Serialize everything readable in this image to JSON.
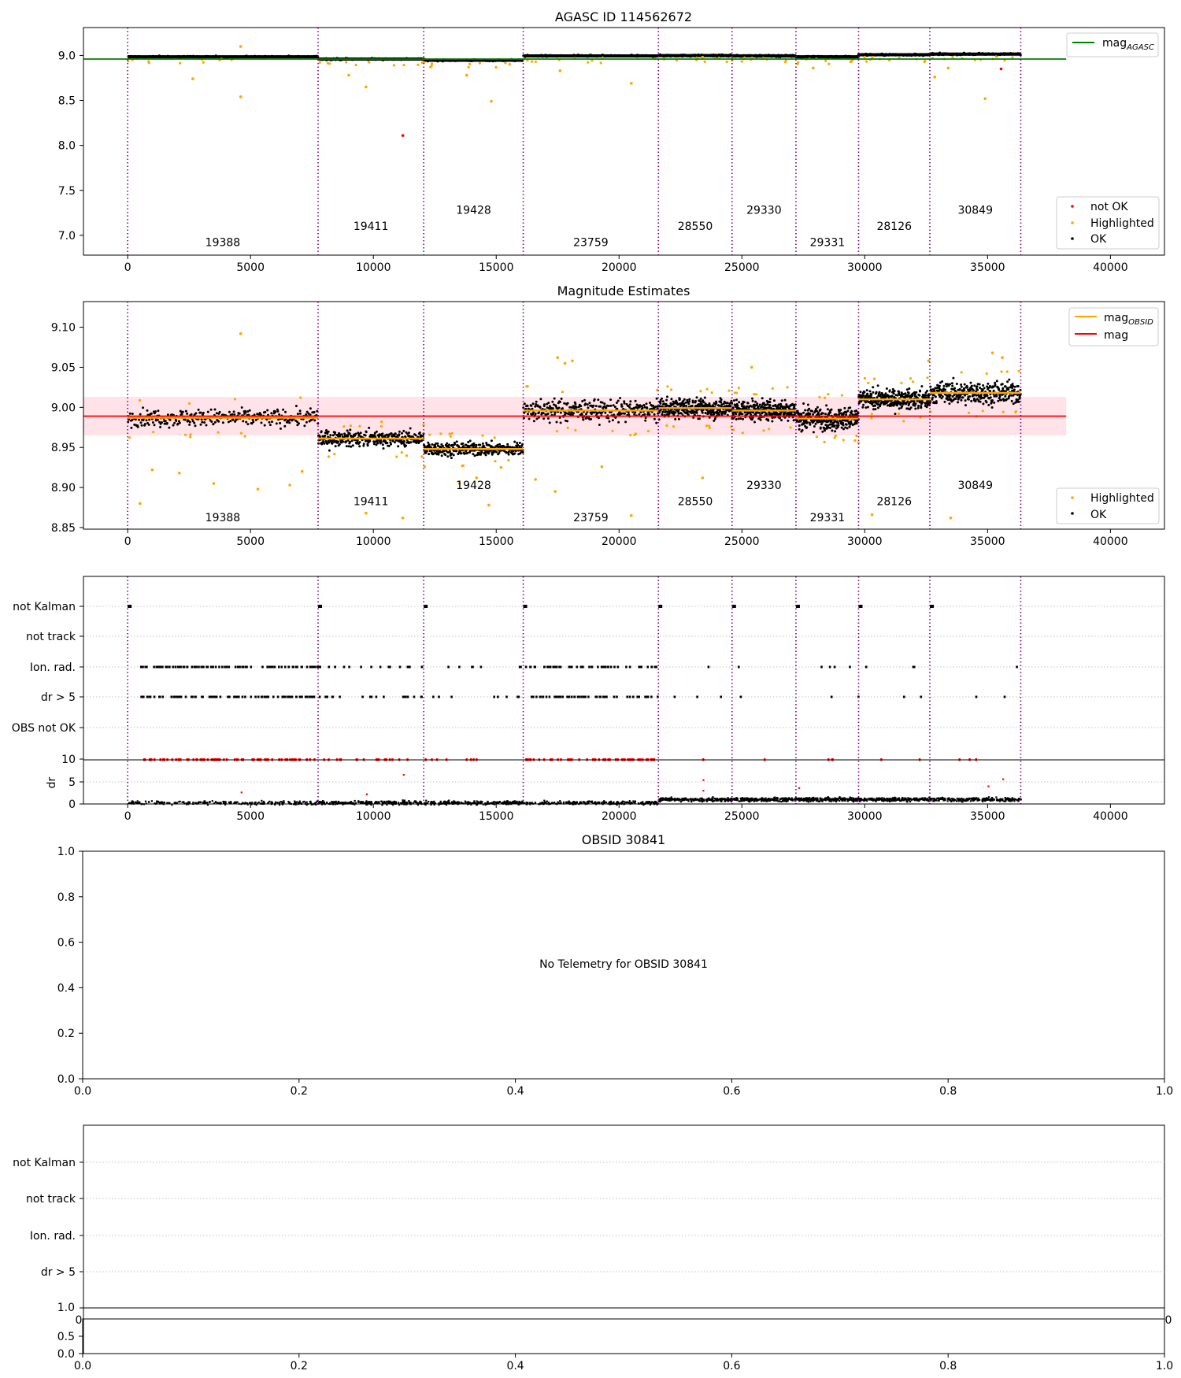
{
  "colors": {
    "ok": "#000000",
    "highlighted": "#ffa500",
    "not_ok": "#ff0000",
    "agasc_line": "#008000",
    "mag_line": "#ff0000",
    "mag_obsid_line": "#ffa500",
    "band_fill": "#ffc0cb",
    "obsid_boundary": "#800080",
    "grid": "#b0b0b0"
  },
  "chart_data": [
    {
      "id": "agasc",
      "type": "scatter",
      "title": "AGASC ID 114562672",
      "xlim": [
        -1800,
        42200
      ],
      "ylim": [
        6.78,
        9.31
      ],
      "xticks": [
        0,
        5000,
        10000,
        15000,
        20000,
        25000,
        30000,
        35000,
        40000
      ],
      "yticks": [
        7.0,
        7.5,
        8.0,
        8.5,
        9.0
      ],
      "ytick_labels": [
        "7.0",
        "7.5",
        "8.0",
        "8.5",
        "9.0"
      ],
      "obsid_boundaries": [
        0,
        7750,
        12050,
        16100,
        21600,
        24600,
        27200,
        29750,
        32650,
        36350
      ],
      "obsids": [
        {
          "label": "19388",
          "x": 3870,
          "y": 6.88
        },
        {
          "label": "19411",
          "x": 9900,
          "y": 7.06
        },
        {
          "label": "19428",
          "x": 14080,
          "y": 7.24
        },
        {
          "label": "23759",
          "x": 18850,
          "y": 6.88
        },
        {
          "label": "28550",
          "x": 23100,
          "y": 7.06
        },
        {
          "label": "29330",
          "x": 25900,
          "y": 7.24
        },
        {
          "label": "29331",
          "x": 28480,
          "y": 6.88
        },
        {
          "label": "28126",
          "x": 31200,
          "y": 7.06
        },
        {
          "label": "30849",
          "x": 34500,
          "y": 7.24
        }
      ],
      "segment_levels": [
        8.985,
        8.96,
        8.947,
        8.995,
        8.998,
        8.995,
        8.985,
        9.008,
        9.015
      ],
      "agasc_mag": 8.96,
      "agasc_line_xrange": [
        -1800,
        38200
      ],
      "series": [
        {
          "name": "mag$_{AGASC}$",
          "legend_main": "mag",
          "legend_sub": "AGASC"
        },
        {
          "name": "not OK"
        },
        {
          "name": "Highlighted"
        },
        {
          "name": "OK"
        }
      ],
      "highlighted_points": [
        [
          4600,
          9.1
        ],
        [
          2650,
          8.74
        ],
        [
          4600,
          8.54
        ],
        [
          9700,
          8.65
        ],
        [
          9000,
          8.78
        ],
        [
          13800,
          8.78
        ],
        [
          14800,
          8.49
        ],
        [
          20500,
          8.69
        ],
        [
          17600,
          8.83
        ],
        [
          23400,
          8.98
        ],
        [
          34900,
          8.52
        ],
        [
          33400,
          8.86
        ],
        [
          32850,
          8.76
        ],
        [
          27900,
          8.86
        ]
      ],
      "not_ok_points": [
        [
          11200,
          8.11
        ],
        [
          35550,
          8.85
        ]
      ]
    },
    {
      "id": "magnitude",
      "type": "scatter",
      "title": "Magnitude Estimates",
      "xlim": [
        -1800,
        42200
      ],
      "ylim": [
        8.848,
        9.132
      ],
      "xticks": [
        0,
        5000,
        10000,
        15000,
        20000,
        25000,
        30000,
        35000,
        40000
      ],
      "yticks": [
        8.85,
        8.9,
        8.95,
        9.0,
        9.05,
        9.1
      ],
      "ytick_labels": [
        "8.85",
        "8.90",
        "8.95",
        "9.00",
        "9.05",
        "9.10"
      ],
      "obsid_boundaries": [
        0,
        7750,
        12050,
        16100,
        21600,
        24600,
        27200,
        29750,
        32650,
        36350
      ],
      "obsids": [
        {
          "label": "19388",
          "x": 3870,
          "y": 8.858
        },
        {
          "label": "19411",
          "x": 9900,
          "y": 8.878
        },
        {
          "label": "19428",
          "x": 14080,
          "y": 8.898
        },
        {
          "label": "23759",
          "x": 18850,
          "y": 8.858
        },
        {
          "label": "28550",
          "x": 23100,
          "y": 8.878
        },
        {
          "label": "29330",
          "x": 25900,
          "y": 8.898
        },
        {
          "label": "29331",
          "x": 28480,
          "y": 8.858
        },
        {
          "label": "28126",
          "x": 31200,
          "y": 8.878
        },
        {
          "label": "30849",
          "x": 34500,
          "y": 8.898
        }
      ],
      "mag": 8.989,
      "mag_band": [
        8.965,
        9.013
      ],
      "mag_line_xrange": [
        -1800,
        38200
      ],
      "mag_obsid": [
        8.987,
        8.961,
        8.948,
        8.996,
        8.999,
        8.996,
        8.986,
        9.01,
        9.018
      ],
      "segment_spread": [
        0.01,
        0.009,
        0.008,
        0.013,
        0.012,
        0.012,
        0.013,
        0.011,
        0.013
      ],
      "series": [
        {
          "name": "mag$_{OBSID}$",
          "legend_main": "mag",
          "legend_sub": "OBSID"
        },
        {
          "name": "mag"
        },
        {
          "name": "Highlighted"
        },
        {
          "name": "OK"
        }
      ],
      "highlighted_points": [
        [
          4600,
          9.092
        ],
        [
          500,
          8.88
        ],
        [
          1000,
          8.922
        ],
        [
          2100,
          8.918
        ],
        [
          3500,
          8.905
        ],
        [
          5300,
          8.898
        ],
        [
          6600,
          8.903
        ],
        [
          7100,
          8.92
        ],
        [
          9700,
          8.868
        ],
        [
          11200,
          8.862
        ],
        [
          13500,
          8.905
        ],
        [
          14200,
          8.912
        ],
        [
          14700,
          8.878
        ],
        [
          15200,
          8.925
        ],
        [
          16600,
          8.91
        ],
        [
          17400,
          8.895
        ],
        [
          19300,
          8.926
        ],
        [
          20500,
          8.865
        ],
        [
          23400,
          8.912
        ],
        [
          30300,
          8.866
        ],
        [
          33500,
          8.862
        ]
      ],
      "highlighted_high": [
        [
          17500,
          9.062
        ],
        [
          17800,
          9.055
        ],
        [
          18100,
          9.058
        ],
        [
          25400,
          9.05
        ],
        [
          32600,
          9.058
        ],
        [
          35200,
          9.068
        ],
        [
          35600,
          9.062
        ]
      ]
    },
    {
      "id": "flags",
      "type": "scatter",
      "xlim": [
        -1800,
        42200
      ],
      "categories": [
        "not Kalman",
        "not track",
        "Ion. rad.",
        "dr > 5",
        "OBS not OK"
      ],
      "xticks": [
        0,
        5000,
        10000,
        15000,
        20000,
        25000,
        30000,
        35000,
        40000
      ],
      "obsid_boundaries": [
        0,
        7750,
        12050,
        16100,
        21600,
        24600,
        27200,
        29750,
        32650,
        36350
      ]
    },
    {
      "id": "dr",
      "type": "scatter",
      "ylabel": "dr",
      "ylim": [
        0,
        10
      ],
      "yticks": [
        0,
        5,
        10
      ],
      "ytick_labels": [
        "0",
        "5",
        "10"
      ],
      "xlim": [
        -1800,
        42200
      ]
    },
    {
      "id": "obsid",
      "type": "scatter",
      "title": "OBSID 30841",
      "annotation": "No Telemetry for OBSID 30841",
      "xlim": [
        0,
        1
      ],
      "ylim": [
        0,
        1
      ],
      "xticks": [
        0,
        0.2,
        0.4,
        0.6,
        0.8,
        1.0
      ],
      "xtick_labels": [
        "0.0",
        "0.2",
        "0.4",
        "0.6",
        "0.8",
        "1.0"
      ],
      "yticks": [
        0,
        0.2,
        0.4,
        0.6,
        0.8,
        1.0
      ],
      "ytick_labels": [
        "0.0",
        "0.2",
        "0.4",
        "0.6",
        "0.8",
        "1.0"
      ]
    },
    {
      "id": "flags2",
      "type": "scatter",
      "categories": [
        "not Kalman",
        "not track",
        "Ion. rad.",
        "dr > 5"
      ],
      "xtick_edge_labels": [
        "0",
        "0"
      ],
      "ytop_label": "1.0"
    },
    {
      "id": "bottom",
      "type": "scatter",
      "xlim": [
        0,
        1
      ],
      "ylim": [
        0,
        1
      ],
      "xticks": [
        0,
        0.2,
        0.4,
        0.6,
        0.8,
        1.0
      ],
      "xtick_labels": [
        "0.0",
        "0.2",
        "0.4",
        "0.6",
        "0.8",
        "1.0"
      ],
      "yticks": [
        0,
        0.5
      ],
      "ytick_labels": [
        "0.0",
        "0.5"
      ]
    }
  ]
}
